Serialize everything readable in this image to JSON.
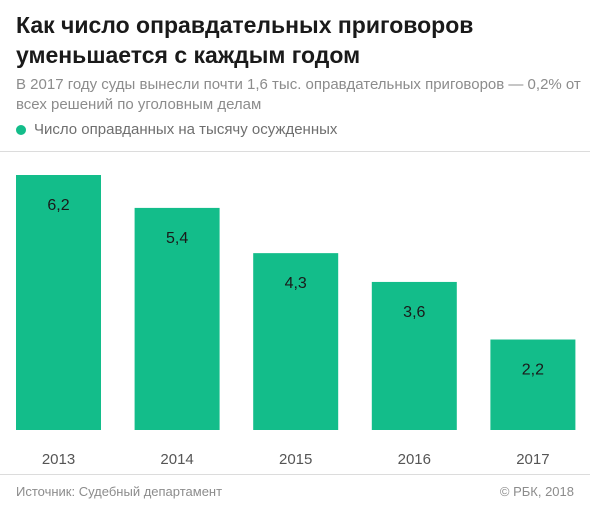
{
  "header": {
    "title": "Как число оправдательных приговоров уменьшается с каждым годом",
    "subtitle": "В 2017 году суды вынесли почти 1,6 тыс. оправдательных приговоров — 0,2% от всех решений по уголовным делам"
  },
  "legend": {
    "label": "Число оправданных на тысячу осужденных",
    "color": "#13bd8a"
  },
  "footer": {
    "source": "Источник: Судебный департамент",
    "copyright": "© РБК, 2018"
  },
  "chart_data": {
    "type": "bar",
    "categories": [
      "2013",
      "2014",
      "2015",
      "2016",
      "2017"
    ],
    "values": [
      6.2,
      5.4,
      4.3,
      3.6,
      2.2
    ],
    "value_labels": [
      "6,2",
      "5,4",
      "4,3",
      "3,6",
      "2,2"
    ],
    "color": "#13bd8a",
    "ylim": [
      0,
      6.2
    ],
    "grid": false,
    "legend_position": "top-left"
  }
}
